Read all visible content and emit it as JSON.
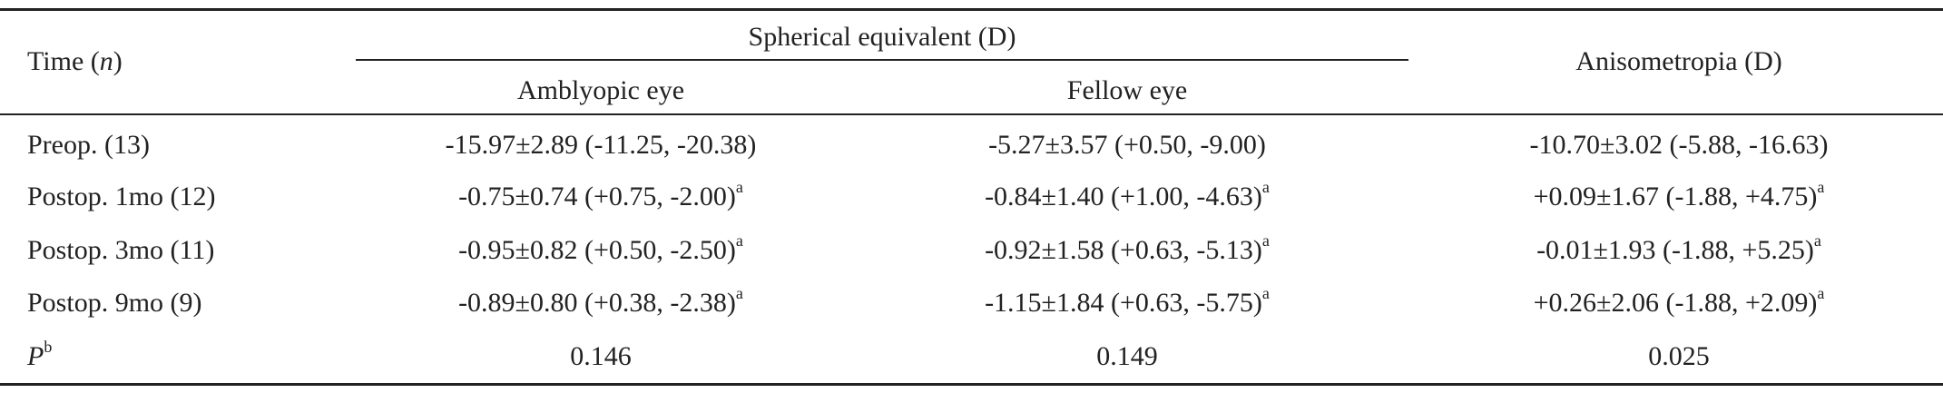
{
  "table": {
    "header": {
      "time": [
        "Time (",
        "n",
        ")"
      ],
      "group": "Spherical equivalent (D)",
      "columns": [
        "Amblyopic eye",
        "Fellow eye"
      ],
      "anisometropia": "Anisometropia (D)"
    },
    "rows": [
      {
        "label": "Preop. (13)",
        "cells": [
          {
            "text": "-15.97±2.89 (-11.25, -20.38)"
          },
          {
            "text": "-5.27±3.57 (+0.50, -9.00)"
          },
          {
            "text": "-10.70±3.02 (-5.88, -16.63)"
          }
        ]
      },
      {
        "label": "Postop. 1mo (12)",
        "cells": [
          {
            "text": "-0.75±0.74 (+0.75, -2.00)",
            "sup": "a"
          },
          {
            "text": "-0.84±1.40 (+1.00, -4.63)",
            "sup": "a"
          },
          {
            "text": "+0.09±1.67 (-1.88, +4.75)",
            "sup": "a"
          }
        ]
      },
      {
        "label": "Postop. 3mo (11)",
        "cells": [
          {
            "text": "-0.95±0.82 (+0.50, -2.50)",
            "sup": "a"
          },
          {
            "text": "-0.92±1.58 (+0.63, -5.13)",
            "sup": "a"
          },
          {
            "text": "-0.01±1.93 (-1.88, +5.25)",
            "sup": "a"
          }
        ]
      },
      {
        "label": "Postop. 9mo (9)",
        "cells": [
          {
            "text": "-0.89±0.80 (+0.38, -2.38)",
            "sup": "a"
          },
          {
            "text": "-1.15±1.84 (+0.63, -5.75)",
            "sup": "a"
          },
          {
            "text": "+0.26±2.06 (-1.88, +2.09)",
            "sup": "a"
          }
        ]
      }
    ],
    "p_row": {
      "label": [
        "P",
        "b"
      ],
      "cells": [
        "0.146",
        "0.149",
        "0.025"
      ]
    }
  }
}
